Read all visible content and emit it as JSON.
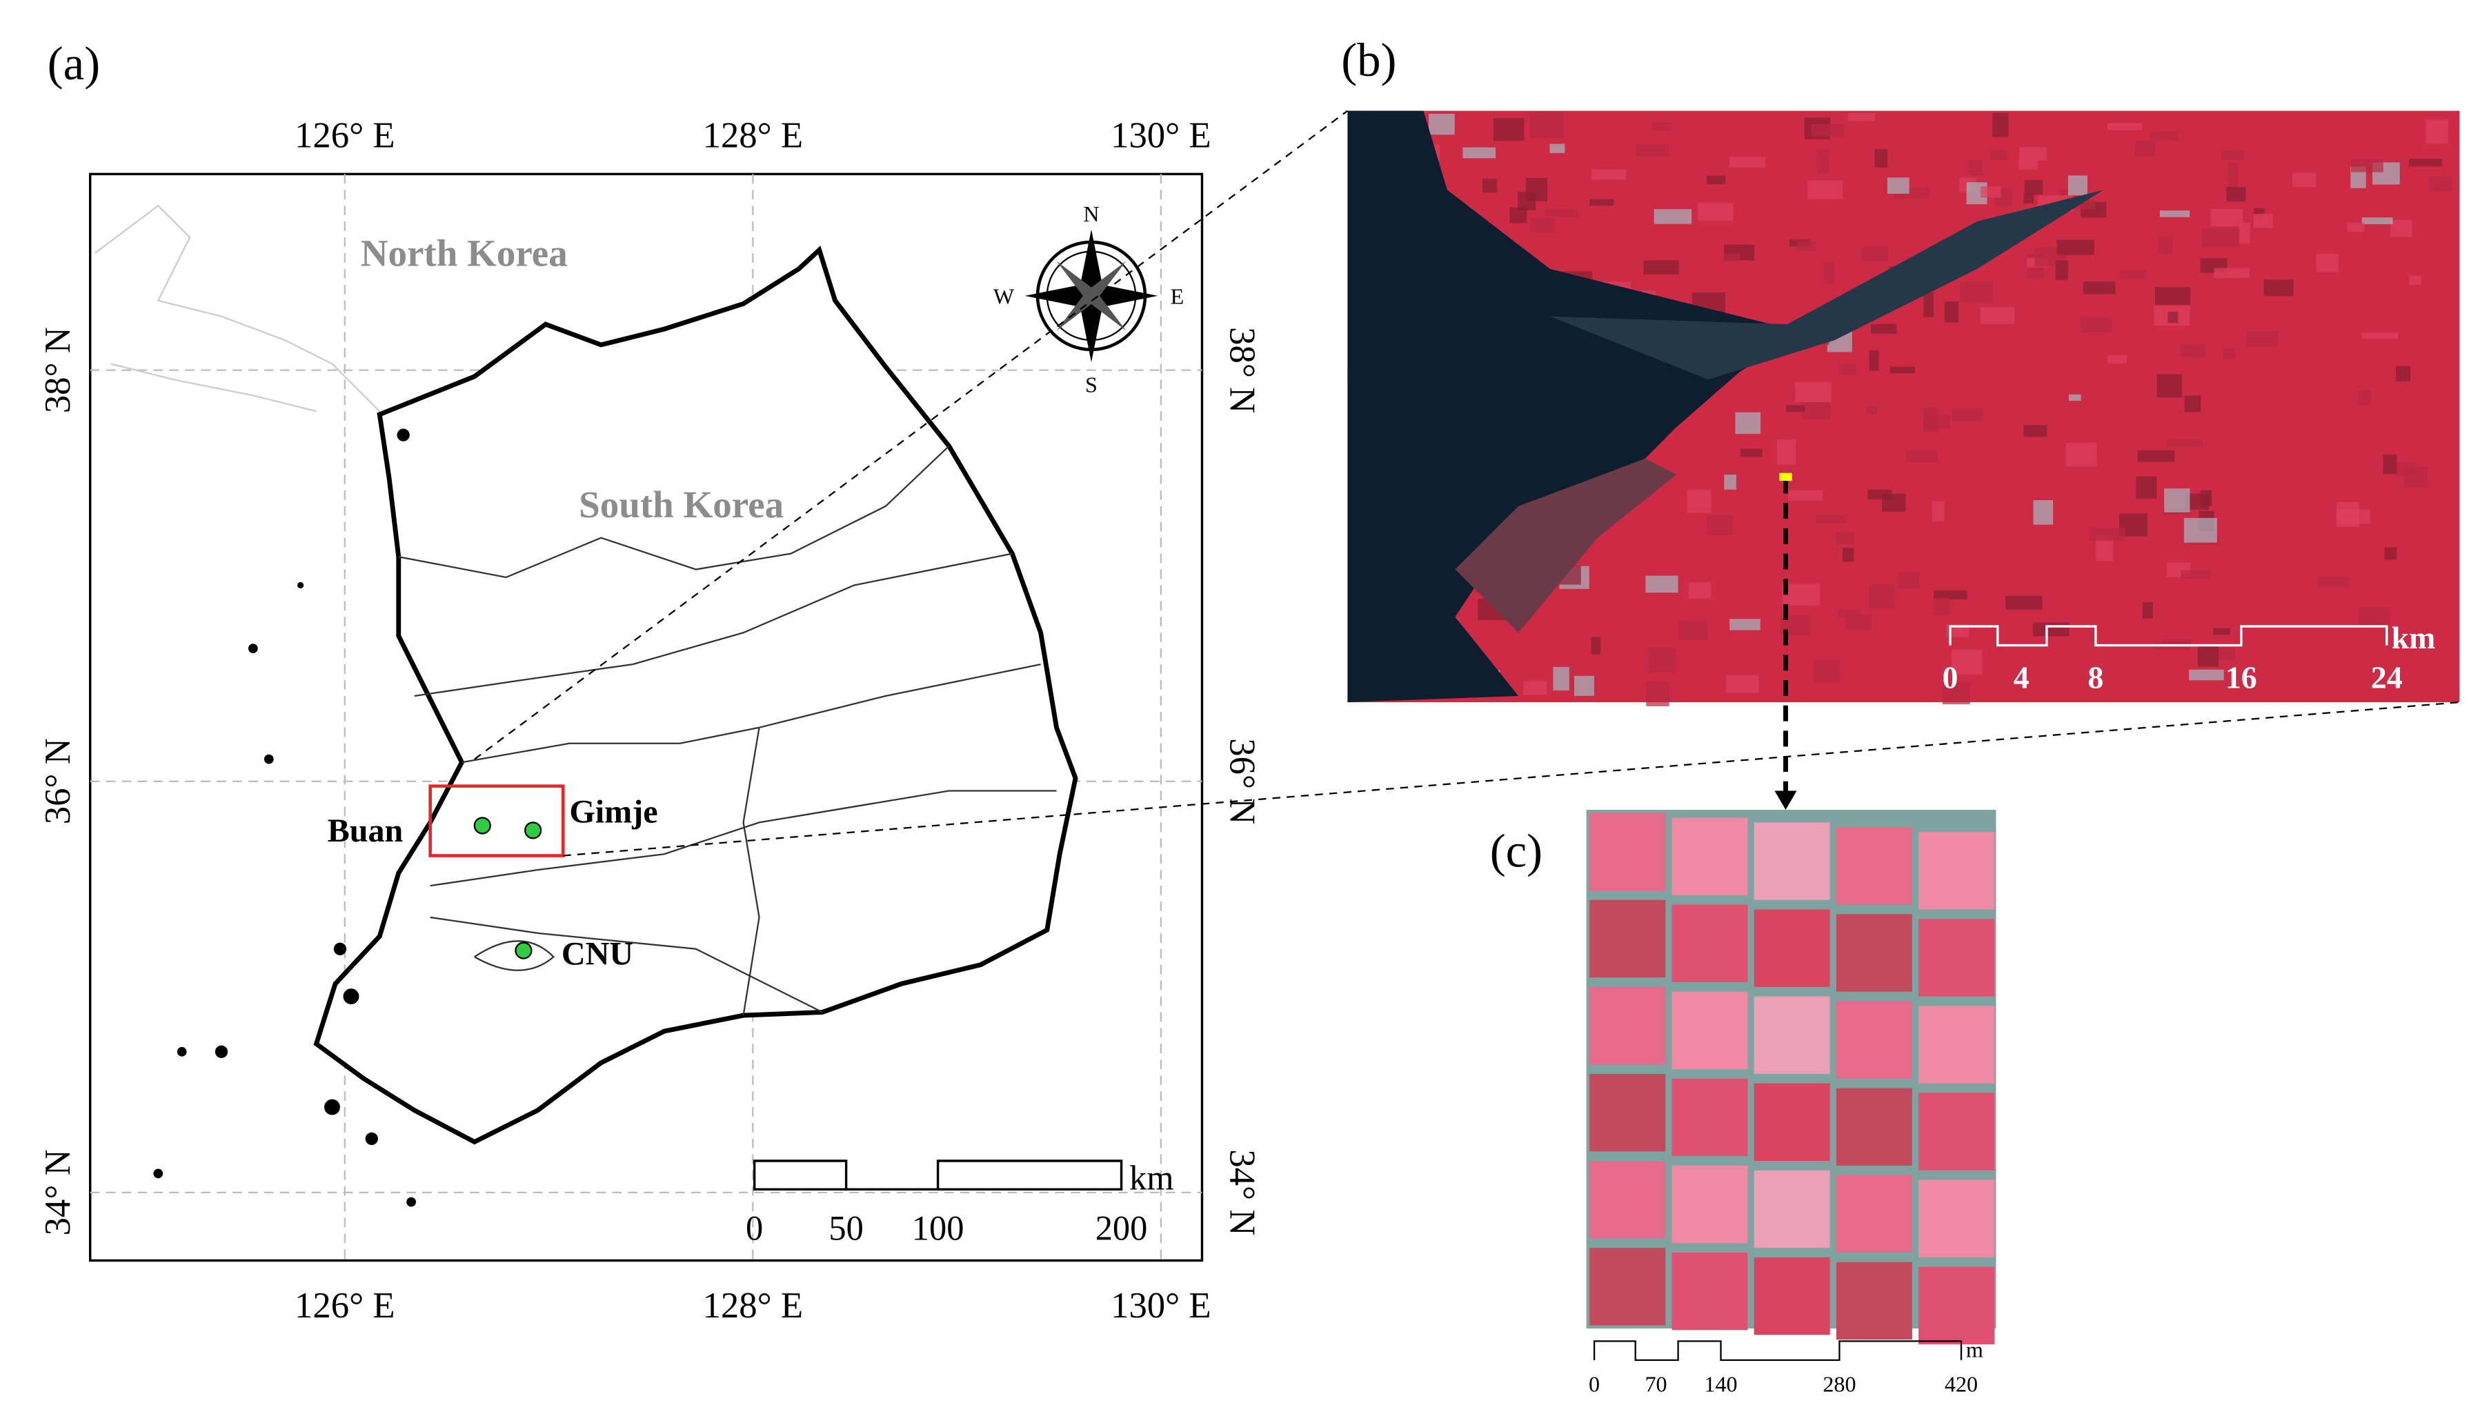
{
  "panel_a": {
    "label": "(a)",
    "lon_labels": [
      "126° E",
      "128° E",
      "130° E"
    ],
    "lat_labels": [
      "38° N",
      "36° N",
      "34° N"
    ],
    "places": {
      "north": "North Korea",
      "south": "South Korea",
      "buan": "Buan",
      "gimje": "Gimje",
      "cnu": "CNU"
    },
    "compass": {
      "n": "N",
      "e": "E",
      "s": "S",
      "w": "W"
    },
    "scale_bar": {
      "ticks": [
        "0",
        "50",
        "100",
        "200"
      ],
      "unit": "km"
    }
  },
  "panel_b": {
    "label": "(b)",
    "scale_bar": {
      "ticks": [
        "0",
        "4",
        "8",
        "16",
        "24"
      ],
      "unit": "km"
    }
  },
  "panel_c": {
    "label": "(c)",
    "scale_bar": {
      "ticks": [
        "0",
        "70",
        "140",
        "280",
        "420"
      ],
      "unit": "m"
    }
  }
}
